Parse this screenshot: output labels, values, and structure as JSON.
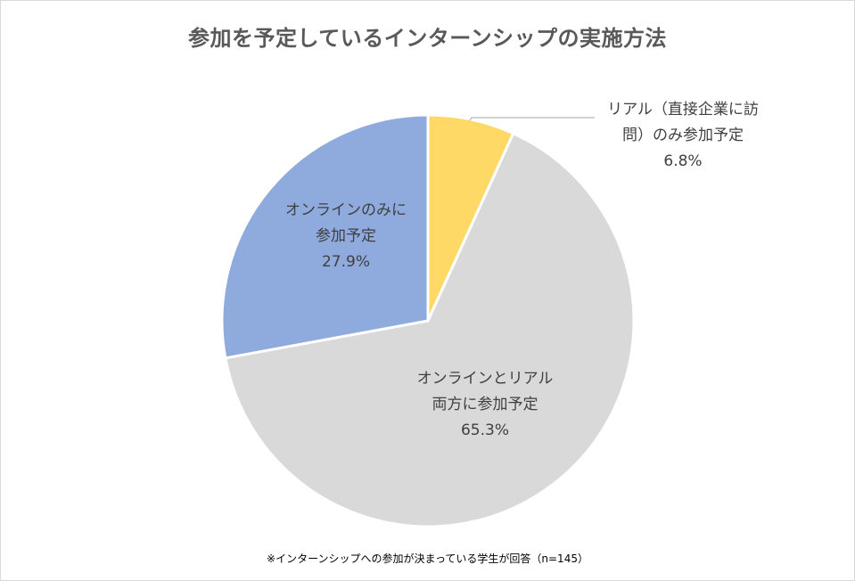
{
  "title": "参加を予定しているインターンシップの実施方法",
  "note": "※インターンシップへの参加が決まっている学生が回答（n=145）",
  "chart_data": {
    "type": "pie",
    "title": "参加を予定しているインターンシップの実施方法",
    "slices": [
      {
        "label_lines": [
          "リアル（直接企業に訪",
          "問）のみ参加予定"
        ],
        "value": 6.8,
        "value_label": "6.8%",
        "color": "#FFD966"
      },
      {
        "label_lines": [
          "オンラインとリアル",
          "両方に参加予定"
        ],
        "value": 65.3,
        "value_label": "65.3%",
        "color": "#D9D9D9"
      },
      {
        "label_lines": [
          "オンラインのみに",
          "参加予定"
        ],
        "value": 27.9,
        "value_label": "27.9%",
        "color": "#8FAADC"
      }
    ],
    "start_angle_deg": 0,
    "direction": "clockwise",
    "legend": "none",
    "note": "※インターンシップへの参加が決まっている学生が回答（n=145）"
  }
}
